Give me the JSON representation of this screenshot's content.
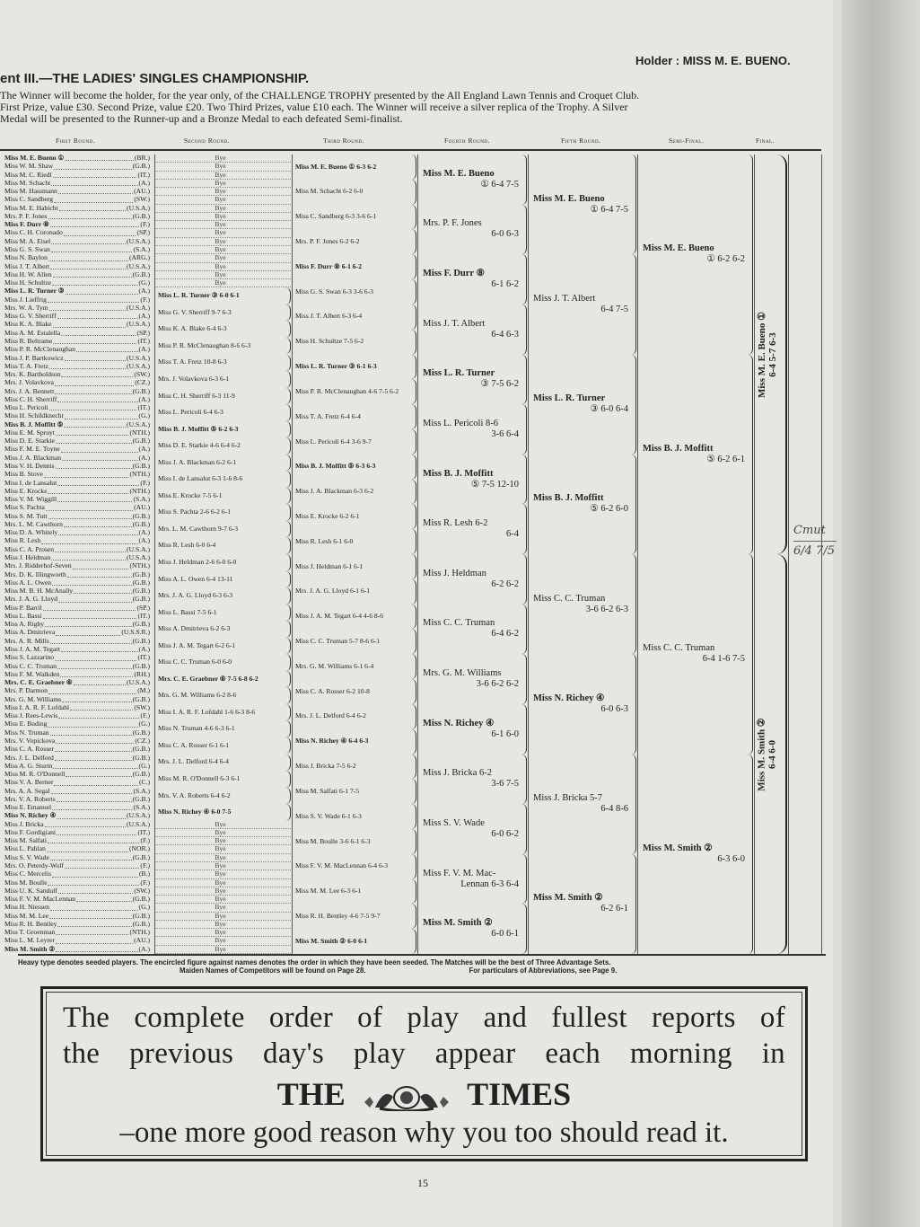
{
  "header": {
    "holder": "Holder : MISS M. E. BUENO.",
    "title": "ent III.—THE LADIES' SINGLES CHAMPIONSHIP.",
    "description_lines": [
      "presented by the All England Lawn Tennis and Croquet Club.",
      "The Winner will become the holder, for the year only, of the CHALLENGE TROPHY presented by the All England Lawn Tennis and Croquet Club.",
      "The Winner will become the holder, for the year only, of the CHALLENGE TROPHY",
      "First Prize, value £30. Second Prize, value £20. Two Third Prizes, value £10 each. The Winner will receive a silver replica of the Trophy. A Silver",
      "Medal will be presented to the Runner-up and a Bronze Medal to each defeated Semi-finalist."
    ],
    "rounds": [
      "First Round.",
      "Second Round.",
      "Third Round.",
      "Fourth Round.",
      "Fifth Round.",
      "Semi-Final.",
      "Final."
    ]
  },
  "first_round": [
    {
      "n": "Miss M. E. Bueno ①",
      "c": "(BR.)",
      "b": true
    },
    {
      "n": "Miss W. M. Shaw",
      "c": "(G.B.)"
    },
    {
      "n": "Miss M. C. Riedl",
      "c": "(IT.)"
    },
    {
      "n": "Miss M. Schacht",
      "c": "(A.)"
    },
    {
      "n": "Miss M. Hassmann",
      "c": "(AU.)"
    },
    {
      "n": "Miss C. Sandberg",
      "c": "(SW.)"
    },
    {
      "n": "Miss M. E. Habicht",
      "c": "(U.S.A.)"
    },
    {
      "n": "Mrs. P. F. Jones",
      "c": "(G.B.)"
    },
    {
      "n": "Miss F. Durr ⑧",
      "c": "(F.)",
      "b": true
    },
    {
      "n": "Miss C. H. Coronado",
      "c": "(SP.)"
    },
    {
      "n": "Miss M. A. Eisel",
      "c": "(U.S.A.)"
    },
    {
      "n": "Miss G. S. Swan",
      "c": "(S.A.)"
    },
    {
      "n": "Miss N. Baylon",
      "c": "(ARG.)"
    },
    {
      "n": "Miss J. T. Albert",
      "c": "(U.S.A.)"
    },
    {
      "n": "Miss H. W. Allen",
      "c": "(G.B.)"
    },
    {
      "n": "Miss H. Schultze",
      "c": "(G.)"
    },
    {
      "n": "Miss L. R. Turner ③",
      "c": "(A.)",
      "b": true
    },
    {
      "n": "Miss J. Lieffrig",
      "c": "(F.)"
    },
    {
      "n": "Mrs. W. A. Tym",
      "c": "(U.S.A.)"
    },
    {
      "n": "Miss G. V. Sherriff",
      "c": "(A.)"
    },
    {
      "n": "Miss K. A. Blake",
      "c": "(U.S.A.)"
    },
    {
      "n": "Miss A. M. Estalella",
      "c": "(SP.)"
    },
    {
      "n": "Miss R. Beltrame",
      "c": "(IT.)"
    },
    {
      "n": "Miss P. R. McClenaughan",
      "c": "(A.)"
    },
    {
      "n": "Miss J. P. Bartkowicz",
      "c": "(U.S.A.)"
    },
    {
      "n": "Miss T. A. Fretz",
      "c": "(U.S.A.)"
    },
    {
      "n": "Mrs. K. Bartholdson",
      "c": "(SW.)"
    },
    {
      "n": "Mrs. J. Volavkova",
      "c": "(CZ.)"
    },
    {
      "n": "Mrs. J. A. Bennett",
      "c": "(G.B.)"
    },
    {
      "n": "Miss C. H. Sherriff",
      "c": "(A.)"
    },
    {
      "n": "Miss L. Pericoli",
      "c": "(IT.)"
    },
    {
      "n": "Miss H. Schildknecht",
      "c": "(G.)"
    },
    {
      "n": "Miss B. J. Moffitt ⑤",
      "c": "(U.S.A.)",
      "b": true
    },
    {
      "n": "Miss E. M. Spruyt",
      "c": "(NTH.)"
    },
    {
      "n": "Miss D. E. Starkie",
      "c": "(G.B.)"
    },
    {
      "n": "Miss F. M. E. Toyne",
      "c": "(A.)"
    },
    {
      "n": "Miss J. A. Blackman",
      "c": "(A.)"
    },
    {
      "n": "Miss V. H. Dennis",
      "c": "(G.B.)"
    },
    {
      "n": "Miss B. Stove",
      "c": "(NTH.)"
    },
    {
      "n": "Miss I. de Lansalut",
      "c": "(F.)"
    },
    {
      "n": "Miss E. Krocke",
      "c": "(NTH.)"
    },
    {
      "n": "Miss V. M. Wiggill",
      "c": "(S.A.)"
    },
    {
      "n": "Miss S. Pachta",
      "c": "(AU.)"
    },
    {
      "n": "Miss S. M. Tutt",
      "c": "(G.B.)"
    },
    {
      "n": "Mrs. L. M. Cawthorn",
      "c": "(G.B.)"
    },
    {
      "n": "Miss D. A. Whitely",
      "c": "(A.)"
    },
    {
      "n": "Miss R. Lesh",
      "c": "(A.)"
    },
    {
      "n": "Miss C. A. Prosen",
      "c": "(U.S.A.)"
    },
    {
      "n": "Miss J. Heldman",
      "c": "(U.S.A.)"
    },
    {
      "n": "Mrs. J. Ridderhof-Seven",
      "c": "(NTH.)"
    },
    {
      "n": "Mrs. D. K. Illingworth",
      "c": "(G.B.)"
    },
    {
      "n": "Miss A. L. Owen",
      "c": "(G.B.)"
    },
    {
      "n": "Miss M. B. H. McAnally",
      "c": "(G.B.)"
    },
    {
      "n": "Mrs. J. A. G. Lloyd",
      "c": "(G.B.)"
    },
    {
      "n": "Miss P. Barril",
      "c": "(SP.)"
    },
    {
      "n": "Miss L. Bassi",
      "c": "(IT.)"
    },
    {
      "n": "Miss A. Rigby",
      "c": "(G.B.)"
    },
    {
      "n": "Miss A. Dmitrieva",
      "c": "(U.S.S.R.)"
    },
    {
      "n": "Mrs. A. R. Mills",
      "c": "(G.B.)"
    },
    {
      "n": "Miss J. A. M. Tegart",
      "c": "(A.)"
    },
    {
      "n": "Miss S. Lazzarino",
      "c": "(IT.)"
    },
    {
      "n": "Miss C. C. Truman",
      "c": "(G.B.)"
    },
    {
      "n": "Miss F. M. Walkden",
      "c": "(RH.)"
    },
    {
      "n": "Mrs. C. E. Graebner ⑥",
      "c": "(U.S.A.)",
      "b": true
    },
    {
      "n": "Mrs. P. Darmon",
      "c": "(M.)"
    },
    {
      "n": "Mrs. G. M. Williams",
      "c": "(G.B.)"
    },
    {
      "n": "Miss I. A. R. F. Lofdahl",
      "c": "(SW.)"
    },
    {
      "n": "Miss J. Rees-Lewis",
      "c": "(F.)"
    },
    {
      "n": "Miss E. Buding",
      "c": "(G.)"
    },
    {
      "n": "Miss N. Truman",
      "c": "(G.B.)"
    },
    {
      "n": "Mrs. V. Vopickova",
      "c": "(CZ.)"
    },
    {
      "n": "Miss C. A. Rosser",
      "c": "(G.B.)"
    },
    {
      "n": "Mrs. J. L. Delford",
      "c": "(G.B.)"
    },
    {
      "n": "Miss A. G. Sturm",
      "c": "(G.)"
    },
    {
      "n": "Miss M. R. O'Donnell",
      "c": "(G.B.)"
    },
    {
      "n": "Miss V. A. Berner",
      "c": "(C.)"
    },
    {
      "n": "Mrs. A. A. Segal",
      "c": "(S.A.)"
    },
    {
      "n": "Mrs. V. A. Roberts",
      "c": "(G.B.)"
    },
    {
      "n": "Miss E. Emanuel",
      "c": "(S.A.)"
    },
    {
      "n": "Miss N. Richey ④",
      "c": "(U.S.A.)",
      "b": true
    },
    {
      "n": "Miss J. Bricka",
      "c": "(U.S.A.)"
    },
    {
      "n": "Miss F. Gordigiani",
      "c": "(IT.)"
    },
    {
      "n": "Miss M. Salfati",
      "c": "(F.)"
    },
    {
      "n": "Miss L. Pahlan",
      "c": "(NOR.)"
    },
    {
      "n": "Miss S. V. Wade",
      "c": "(G.B.)"
    },
    {
      "n": "Mrs. O. Peterdy-Wolf",
      "c": "(F.)"
    },
    {
      "n": "Miss C. Mercelis",
      "c": "(B.)"
    },
    {
      "n": "Miss M. Boulle",
      "c": "(F.)"
    },
    {
      "n": "Miss U. K. Sandulf",
      "c": "(SW.)"
    },
    {
      "n": "Miss F. V. M. MacLennan",
      "c": "(G.B.)"
    },
    {
      "n": "Miss H. Niessen",
      "c": "(G.)"
    },
    {
      "n": "Miss M. M. Lee",
      "c": "(G.B.)"
    },
    {
      "n": "Miss R. H. Bentley",
      "c": "(G.B.)"
    },
    {
      "n": "Miss T. Groenman",
      "c": "(NTH.)"
    },
    {
      "n": "Miss L. M. Leyrer",
      "c": "(AU.)"
    },
    {
      "n": "Miss M. Smith ②",
      "c": "(A.)",
      "b": true
    }
  ],
  "bye_label": "Bye",
  "second_round": [
    {
      "n": "Miss L. R. Turner ③ 6-0 6-1",
      "b": true
    },
    {
      "n": "Miss G. V. Sherriff 9-7 6-3"
    },
    {
      "n": "Miss K. A. Blake 6-4 6-3"
    },
    {
      "n": "Miss P. R. McClenaughan 8-6 6-3"
    },
    {
      "n": "Miss T. A. Fretz 10-8 6-3"
    },
    {
      "n": "Mrs. J. Volavkova 6-3 6-1"
    },
    {
      "n": "Miss C. H. Sherriff 6-3 11-9"
    },
    {
      "n": "Miss L. Pericoli 6-4 6-3"
    },
    {
      "n": "Miss B. J. Moffitt ⑤ 6-2 6-3",
      "b": true
    },
    {
      "n": "Miss D. E. Starkie 4-6 6-4 6-2"
    },
    {
      "n": "Miss J. A. Blackman 6-2 6-1"
    },
    {
      "n": "Miss I. de Lansalut 6-3 1-6 8-6"
    },
    {
      "n": "Miss E. Krocke 7-5 6-1"
    },
    {
      "n": "Miss S. Pachta 2-6 6-2 6-1"
    },
    {
      "n": "Mrs. L. M. Cawthorn 9-7 6-3"
    },
    {
      "n": "Miss R. Lesh 6-0 6-4"
    },
    {
      "n": "Miss J. Heldman 2-6 6-0 6-0"
    },
    {
      "n": "Miss A. L. Owen 6-4 13-11"
    },
    {
      "n": "Mrs. J. A. G. Lloyd 6-3 6-3"
    },
    {
      "n": "Miss L. Bassi 7-5 6-1"
    },
    {
      "n": "Miss A. Dmitrieva 6-2 6-3"
    },
    {
      "n": "Miss J. A. M. Tegart 6-2 6-1"
    },
    {
      "n": "Miss C. C. Truman 6-0 6-0"
    },
    {
      "n": "Mrs. C. E. Graebner ⑥ 7-5 6-8 6-2",
      "b": true
    },
    {
      "n": "Mrs. G. M. Williams 6-2 8-6"
    },
    {
      "n": "Miss I. A. R. F. Lofdahl 1-6 6-3 8-6"
    },
    {
      "n": "Miss N. Truman 4-6 6-3 6-1"
    },
    {
      "n": "Miss C. A. Rosser 6-1 6-1"
    },
    {
      "n": "Mrs. J. L. Delford 6-4 6-4"
    },
    {
      "n": "Miss M. R. O'Donnell 6-3 6-1"
    },
    {
      "n": "Mrs. V. A. Roberts 6-4 6-2"
    },
    {
      "n": "Miss N. Richey ④ 6-0 7-5",
      "b": true
    }
  ],
  "third_round": [
    {
      "n": "Miss M. E. Bueno ① 6-3 6-2",
      "b": true
    },
    {
      "n": "Miss M. Schacht 6-2 6-0"
    },
    {
      "n": "Miss C. Sandberg 6-3 3-6 6-1"
    },
    {
      "n": "Mrs. P. F. Jones 6-2 6-2"
    },
    {
      "n": "Miss F. Durr ⑧ 6-1 6-2",
      "b": true
    },
    {
      "n": "Miss G. S. Swan 6-3 3-6 6-3"
    },
    {
      "n": "Miss J. T. Albert 6-3 6-4"
    },
    {
      "n": "Miss H. Schultze 7-5 6-2"
    },
    {
      "n": "Miss L. R. Turner ③ 6-1 6-3",
      "b": true
    },
    {
      "n": "Miss P. R. McClenaughan 4-6 7-5 6-2"
    },
    {
      "n": "Miss T. A. Fretz 6-4 6-4"
    },
    {
      "n": "Miss L. Pericoli 6-4 3-6 9-7"
    },
    {
      "n": "Miss B. J. Moffitt ⑤ 6-3 6-3",
      "b": true
    },
    {
      "n": "Miss J. A. Blackman 6-3 6-2"
    },
    {
      "n": "Miss E. Krocke 6-2 6-1"
    },
    {
      "n": "Miss R. Lesh 6-1 6-0"
    },
    {
      "n": "Miss J. Heldman 6-1 6-1"
    },
    {
      "n": "Mrs. J. A. G. Lloyd 6-1 6-1"
    },
    {
      "n": "Miss J. A. M. Tegart 6-4 4-6 8-6"
    },
    {
      "n": "Miss C. C. Truman 5-7 8-6 6-1"
    },
    {
      "n": "Mrs. G. M. Williams 6-1 6-4"
    },
    {
      "n": "Miss C. A. Rosser 6-2 10-8"
    },
    {
      "n": "Mrs. J. L. Delford 6-4 6-2"
    },
    {
      "n": "Miss N. Richey ④ 6-4 6-3",
      "b": true
    },
    {
      "n": "Miss J. Bricka 7-5 6-2"
    },
    {
      "n": "Miss M. Salfati 6-1 7-5"
    },
    {
      "n": "Miss S. V. Wade 6-1 6-3"
    },
    {
      "n": "Miss M. Boulle 3-6 6-1 6-3"
    },
    {
      "n": "Miss F. V. M. MacLennan 6-4 6-3"
    },
    {
      "n": "Miss M. M. Lee 6-3 6-1"
    },
    {
      "n": "Miss R. H. Bentley 4-6 7-5 9-7"
    },
    {
      "n": "Miss M. Smith ② 6-0 6-1",
      "b": true
    }
  ],
  "fourth_round": [
    {
      "n": "Miss M. E. Bueno",
      "s": "① 6-4 7-5",
      "b": true
    },
    {
      "n": "Mrs. P. F. Jones",
      "s": "6-0 6-3"
    },
    {
      "n": "Miss F. Durr ⑧",
      "s": "6-1 6-2",
      "b": true
    },
    {
      "n": "Miss J. T. Albert",
      "s": "6-4 6-3"
    },
    {
      "n": "Miss L. R. Turner",
      "s": "③ 7-5 6-2",
      "b": true
    },
    {
      "n": "Miss L. Pericoli 8-6",
      "s": "3-6 6-4"
    },
    {
      "n": "Miss B. J. Moffitt",
      "s": "⑤ 7-5 12-10",
      "b": true
    },
    {
      "n": "Miss R. Lesh 6-2",
      "s": "6-4"
    },
    {
      "n": "Miss J. Heldman",
      "s": "6-2 6-2"
    },
    {
      "n": "Miss C. C. Truman",
      "s": "6-4 6-2"
    },
    {
      "n": "Mrs. G. M. Williams",
      "s": "3-6 6-2 6-2"
    },
    {
      "n": "Miss N. Richey ④",
      "s": "6-1 6-0",
      "b": true
    },
    {
      "n": "Miss J. Bricka 6-2",
      "s": "3-6 7-5"
    },
    {
      "n": "Miss S. V. Wade",
      "s": "6-0 6-2"
    },
    {
      "n": "Miss F. V. M. Mac-",
      "s": "Lennan 6-3 6-4"
    },
    {
      "n": "Miss M. Smith ②",
      "s": "6-0 6-1",
      "b": true
    }
  ],
  "fifth_round": [
    {
      "n": "Miss M. E. Bueno",
      "s": "① 6-4 7-5",
      "b": true
    },
    {
      "n": "Miss J. T. Albert",
      "s": "6-4 7-5"
    },
    {
      "n": "Miss L. R. Turner",
      "s": "③ 6-0 6-4",
      "b": true
    },
    {
      "n": "Miss B. J. Moffitt",
      "s": "⑤ 6-2 6-0",
      "b": true
    },
    {
      "n": "Miss C. C. Truman",
      "s": "3-6 6-2 6-3"
    },
    {
      "n": "Miss N. Richey ④",
      "s": "6-0 6-3",
      "b": true
    },
    {
      "n": "Miss J. Bricka 5-7",
      "s": "6-4 8-6"
    },
    {
      "n": "Miss M. Smith ②",
      "s": "6-2 6-1",
      "b": true
    }
  ],
  "semi_final": [
    {
      "n": "Miss M. E. Bueno",
      "s": "① 6-2 6-2",
      "b": true
    },
    {
      "n": "Miss B. J. Moffitt",
      "s": "⑤ 6-2 6-1",
      "b": true
    },
    {
      "n": "Miss C. C. Truman",
      "s": "6-4 1-6 7-5"
    },
    {
      "n": "Miss M. Smith ②",
      "s": "6-3 6-0",
      "b": true
    }
  ],
  "final": [
    {
      "n": "Miss M. E. Bueno ①",
      "s": "6-4 5-7 6-3"
    },
    {
      "n": "Miss M. Smith ②",
      "s": "6-4 6-0"
    }
  ],
  "handwritten": {
    "winner": "Cmut",
    "score": "6/4 7/5"
  },
  "footer": {
    "line1": "Heavy type denotes seeded players.   The encircled figure against names denotes the order in which they have been seeded.   The Matches will be the best of Three Advantage Sets.",
    "line2a": "Maiden Names of Competitors will be found on Page 28.",
    "line2b": "For particulars of Abbreviations, see Page 9."
  },
  "advert": {
    "line1": "The complete order of play and fullest reports of",
    "line2": "the previous day's play appear each morning in",
    "brand_left": "THE",
    "brand_right": "TIMES",
    "tagline": "–one more good reason why you too should read it."
  },
  "page_number": "15"
}
